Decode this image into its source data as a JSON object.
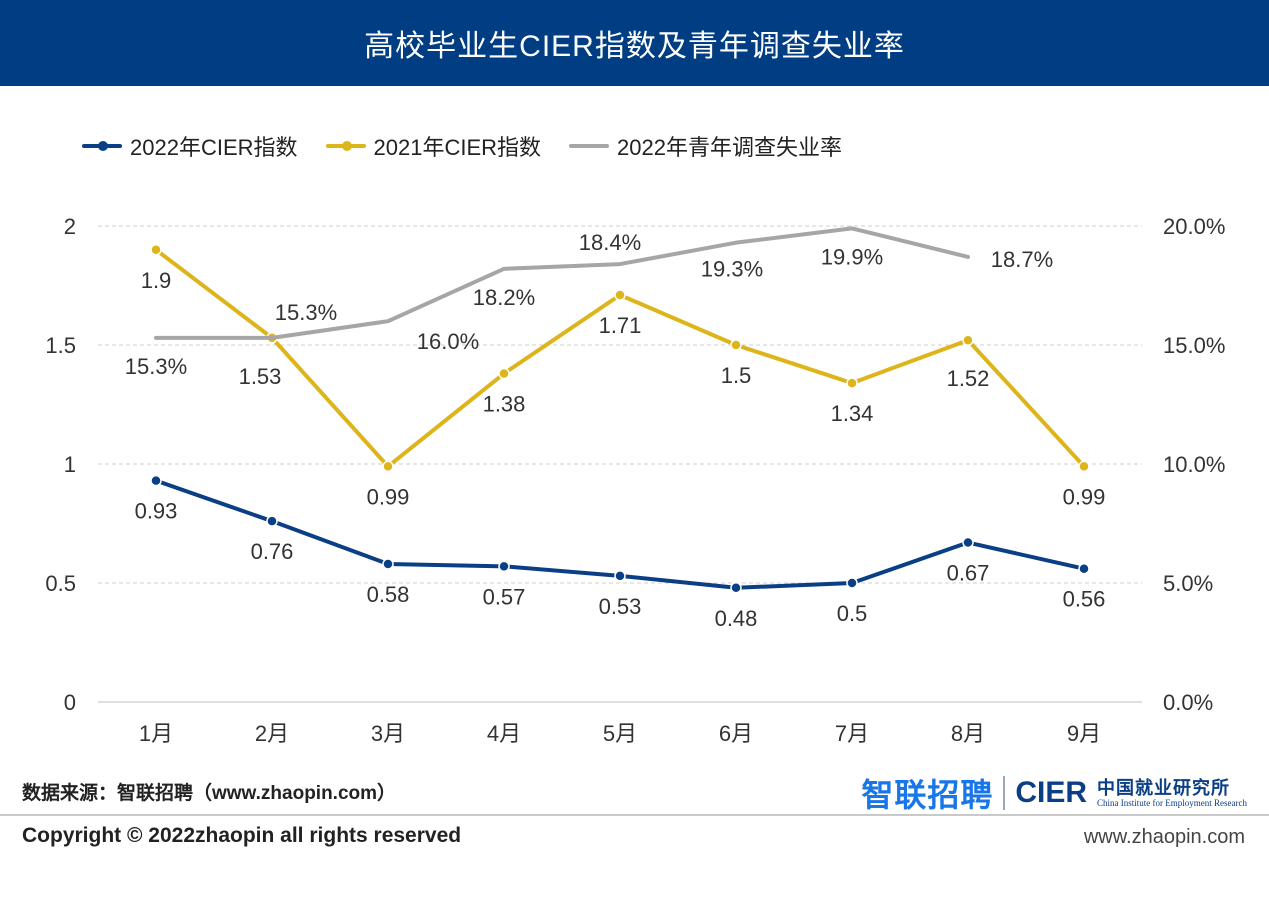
{
  "header": {
    "title": "高校毕业生CIER指数及青年调查失业率"
  },
  "colors": {
    "navy": "#0a3f86",
    "gold": "#ddb41a",
    "gray": "#a6a6a6",
    "header_bg": "#003d82"
  },
  "chart_data": {
    "type": "line",
    "categories": [
      "1月",
      "2月",
      "3月",
      "4月",
      "5月",
      "6月",
      "7月",
      "8月",
      "9月"
    ],
    "left_axis": {
      "range": [
        0,
        2
      ],
      "ticks": [
        "0",
        "0.5",
        "1",
        "1.5",
        "2"
      ],
      "tick_values": [
        0,
        0.5,
        1,
        1.5,
        2
      ]
    },
    "right_axis": {
      "range": [
        0,
        20
      ],
      "ticks": [
        "0.0%",
        "5.0%",
        "10.0%",
        "15.0%",
        "20.0%"
      ],
      "tick_values": [
        0,
        5,
        10,
        15,
        20
      ]
    },
    "grid": true,
    "legend_position": "top-left",
    "series": [
      {
        "name": "2022年CIER指数",
        "axis": "left",
        "color": "#0a3f86",
        "markers": true,
        "values": [
          0.93,
          0.76,
          0.58,
          0.57,
          0.53,
          0.48,
          0.5,
          0.67,
          0.56
        ],
        "labels": [
          "0.93",
          "0.76",
          "0.58",
          "0.57",
          "0.53",
          "0.48",
          "0.5",
          "0.67",
          "0.56"
        ]
      },
      {
        "name": "2021年CIER指数",
        "axis": "left",
        "color": "#ddb41a",
        "markers": true,
        "values": [
          1.9,
          1.53,
          0.99,
          1.38,
          1.71,
          1.5,
          1.34,
          1.52,
          0.99
        ],
        "labels": [
          "1.9",
          "1.53",
          "0.99",
          "1.38",
          "1.71",
          "1.5",
          "1.34",
          "1.52",
          "0.99"
        ]
      },
      {
        "name": "2022年青年调查失业率",
        "axis": "right",
        "color": "#a6a6a6",
        "markers": false,
        "values": [
          15.3,
          15.3,
          16.0,
          18.2,
          18.4,
          19.3,
          19.9,
          18.7,
          null
        ],
        "labels": [
          "15.3%",
          "15.3%",
          "16.0%",
          "18.2%",
          "18.4%",
          "19.3%",
          "19.9%",
          "18.7%",
          null
        ]
      }
    ]
  },
  "legend": {
    "items": [
      {
        "label": "2022年CIER指数"
      },
      {
        "label": "2021年CIER指数"
      },
      {
        "label": "2022年青年调查失业率"
      }
    ]
  },
  "footer": {
    "source": "数据来源：智联招聘（www.zhaopin.com）",
    "logo_zhaopin": "智联招聘",
    "logo_cier": "CIER",
    "logo_cier_cn": "中国就业研究所",
    "logo_cier_en": "China Institute for Employment Research",
    "copyright": "Copyright ©  2022zhaopin all rights reserved",
    "website": "www.zhaopin.com"
  }
}
